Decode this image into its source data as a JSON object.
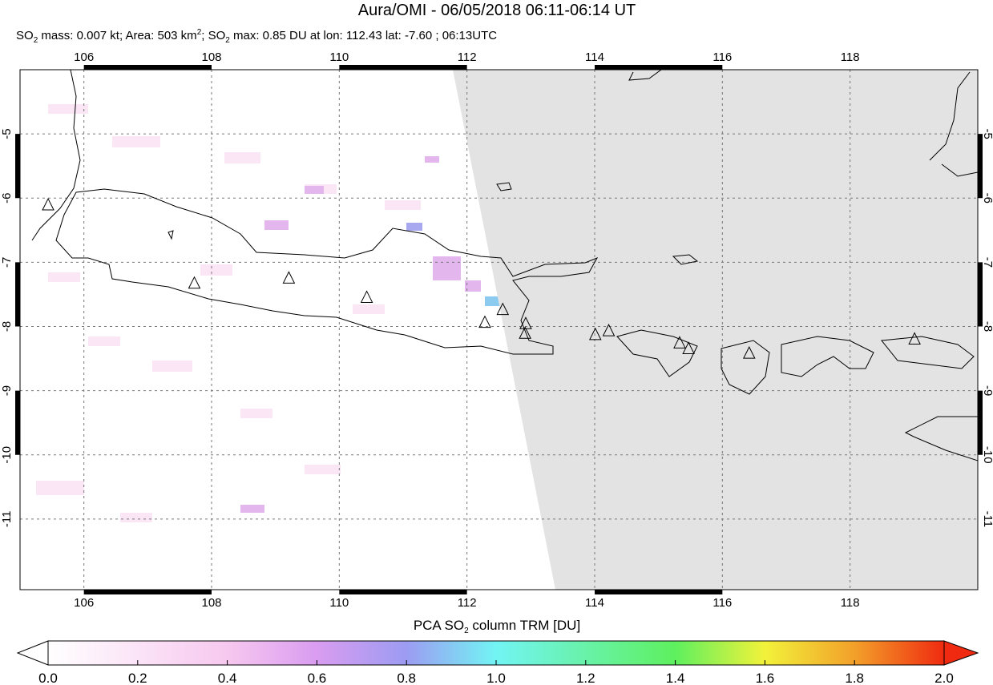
{
  "title": "Aura/OMI - 06/05/2018 06:11-06:14 UT",
  "subtitle": [
    "SO",
    "2",
    " mass: 0.007 kt; Area: 503 km",
    "2",
    "; SO",
    "2",
    " max: 0.85 DU at lon: 112.43 lat: -7.60 ; 06:13UTC"
  ],
  "map": {
    "lonlim": [
      105,
      120
    ],
    "latlim": [
      -4,
      -12.1
    ],
    "lonticks": [
      106,
      108,
      110,
      112,
      114,
      116,
      118
    ],
    "latticks": [
      -5,
      -6,
      -7,
      -8,
      -9,
      -10,
      -11
    ],
    "volcanoes": [
      {
        "lon": 105.44,
        "lat": -6.11
      },
      {
        "lon": 107.73,
        "lat": -7.33
      },
      {
        "lon": 109.21,
        "lat": -7.25
      },
      {
        "lon": 110.43,
        "lat": -7.55
      },
      {
        "lon": 112.28,
        "lat": -7.94
      },
      {
        "lon": 112.56,
        "lat": -7.74
      },
      {
        "lon": 112.92,
        "lat": -7.96
      },
      {
        "lon": 112.91,
        "lat": -8.11
      },
      {
        "lon": 114.01,
        "lat": -8.13
      },
      {
        "lon": 114.22,
        "lat": -8.07
      },
      {
        "lon": 115.33,
        "lat": -8.26
      },
      {
        "lon": 115.47,
        "lat": -8.35
      },
      {
        "lon": 116.42,
        "lat": -8.42
      },
      {
        "lon": 119.01,
        "lat": -8.2
      }
    ]
  },
  "colorbar": {
    "label": [
      "PCA SO",
      "2",
      " column TRM [DU]"
    ],
    "lim": [
      0,
      2
    ],
    "ticks": [
      {
        "value": 0,
        "label": "0.0"
      },
      {
        "value": 0.2,
        "label": "0.2"
      },
      {
        "value": 0.4,
        "label": "0.4"
      },
      {
        "value": 0.6,
        "label": "0.6"
      },
      {
        "value": 0.8,
        "label": "0.8"
      },
      {
        "value": 1,
        "label": "1.0"
      },
      {
        "value": 1.2,
        "label": "1.2"
      },
      {
        "value": 1.4,
        "label": "1.4"
      },
      {
        "value": 1.6,
        "label": "1.6"
      },
      {
        "value": 1.8,
        "label": "1.8"
      },
      {
        "value": 2,
        "label": "2.0"
      }
    ]
  }
}
